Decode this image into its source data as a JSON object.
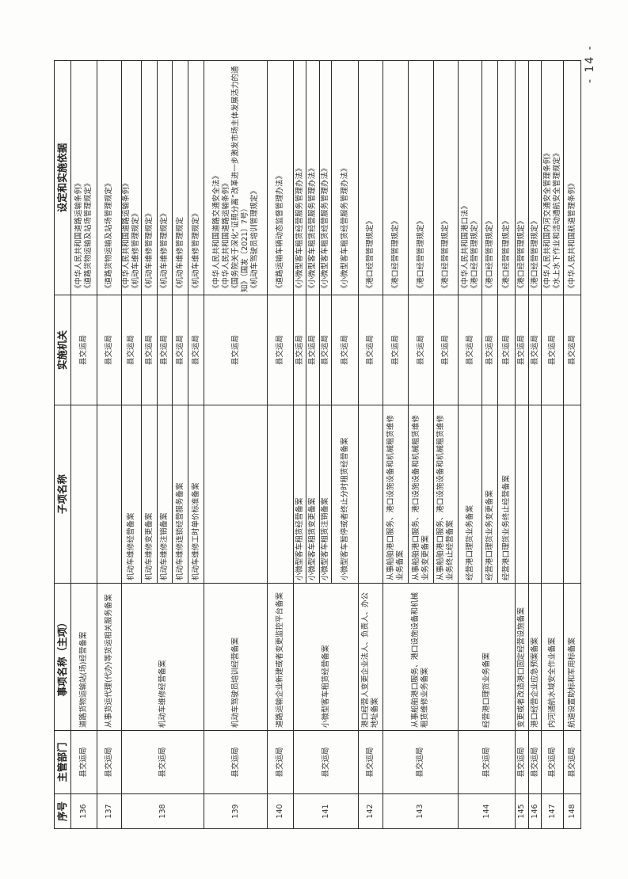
{
  "headers": [
    "序号",
    "主管部门",
    "事项名称（主项）",
    "子项名称",
    "实施机关",
    "设定和实施依据"
  ],
  "page_number": "- 14 -",
  "rows": [
    {
      "no": "136",
      "dept": "县交运局",
      "item": "道路货物运输站(场)经营备案",
      "subs": [
        {
          "name": "",
          "agency": "县交运局",
          "basis": [
            "《中华人民共和国道路运输条例》",
            "《道路货物运输及站场管理规定》"
          ]
        }
      ]
    },
    {
      "no": "137",
      "dept": "县交运局",
      "item": "从事货运代理(代办)等货运相关服务备案",
      "subs": [
        {
          "name": "",
          "agency": "县交运局",
          "basis": [
            "《道路货物运输及站场管理规定》"
          ]
        }
      ]
    },
    {
      "no": "138",
      "dept": "县交运局",
      "item": "机动车维修经营备案",
      "subs": [
        {
          "name": "机动车维修经营备案",
          "agency": "县交运局",
          "basis": [
            "《中华人民共和国道路运输条例》",
            "《机动车维修管理规定》"
          ]
        },
        {
          "name": "机动车维修变更备案",
          "agency": "县交运局",
          "basis": [
            "《机动车维修管理规定》"
          ]
        },
        {
          "name": "机动车维修注销备案",
          "agency": "县交运局",
          "basis": [
            "《机动车维修管理规定》"
          ]
        },
        {
          "name": "机动车维修连锁经营服务备案",
          "agency": "县交运局",
          "basis": [
            "《机动车维修管理规定"
          ]
        },
        {
          "name": "机动车维修工时单价标准备案",
          "agency": "县交运局",
          "basis": [
            "《机动车维修管理规定》"
          ]
        }
      ]
    },
    {
      "no": "139",
      "dept": "县交运局",
      "item": "机动车驾驶员培训经营备案",
      "subs": [
        {
          "name": "",
          "agency": "县交运局",
          "basis": [
            "《中华人民共和国道路交通安全法》",
            "《中华人民共和国道路运输条例》",
            "《国务院关于深化“证照分离”改革进一步激发市场主体发展活力的通知》（国发〔2021〕7号）",
            "《机动车驾驶员培训管理规定》"
          ]
        }
      ]
    },
    {
      "no": "140",
      "dept": "县交运局",
      "item": "道路运输企业新建或者变更监控平台备案",
      "subs": [
        {
          "name": "",
          "agency": "县交运局",
          "basis": [
            "《道路运输车辆动态监督管理办法》"
          ]
        }
      ]
    },
    {
      "no": "141",
      "dept": "县交运局",
      "item": "小微型客车租赁经营备案",
      "subs": [
        {
          "name": "小微型客车租赁经营备案",
          "agency": "县交运局",
          "basis": [
            "《小微型客车租赁经营服务管理办法》"
          ]
        },
        {
          "name": "小微型客车租赁变更备案",
          "agency": "县交运局",
          "basis": [
            "《小微型客车租赁经营服务管理办法》"
          ]
        },
        {
          "name": "小微型客车租赁注销备案",
          "agency": "县交运局",
          "basis": [
            "《小微型客车租赁经营服务管理办法》"
          ]
        },
        {
          "name": "小微型客车暂停或者终止分时租赁经营备案",
          "agency": "县交运局",
          "basis": [
            "《小微型客车租赁经营服务管理办法》"
          ]
        }
      ]
    },
    {
      "no": "142",
      "dept": "县交运局",
      "item": "港口经营人变更企业法人、负责人、办公地址备案",
      "subs": [
        {
          "name": "",
          "agency": "县交运局",
          "basis": [
            "《港口经营管理规定》"
          ]
        }
      ]
    },
    {
      "no": "143",
      "dept": "县交运局",
      "item": "从事船舶港口服务、港口设施设备和机械租赁维修业务备案",
      "subs": [
        {
          "name": "从事船舶港口服务、港口设施设备和机械租赁维修业务备案",
          "agency": "县交运局",
          "basis": [
            "《港口经营管理规定》"
          ]
        },
        {
          "name": "从事船舶港口服务、港口设施设备和机械租赁维修业务变更备案",
          "agency": "县交运局",
          "basis": [
            "《港口经营管理规定》"
          ]
        },
        {
          "name": "从事船舶港口服务、港口设施设备和机械租赁维修业务终止经营备案",
          "agency": "县交运局",
          "basis": [
            "《港口经营管理规定》"
          ]
        }
      ]
    },
    {
      "no": "144",
      "dept": "县交运局",
      "item": "经营港口理货业务备案",
      "subs": [
        {
          "name": "经营港口理货业务备案",
          "agency": "县交运局",
          "basis": [
            "《中华人民共和国港口法》",
            "《港口经营管理规定》"
          ]
        },
        {
          "name": "经营港口理货业务变更备案",
          "agency": "县交运局",
          "basis": [
            "《港口经营管理规定》"
          ]
        },
        {
          "name": "经营港口理货业务终止经营备案",
          "agency": "县交运局",
          "basis": [
            "《港口经营管理规定》"
          ]
        }
      ]
    },
    {
      "no": "145",
      "dept": "县交运局",
      "item": "变更或者改造港口固定经营设施备案",
      "subs": [
        {
          "name": "",
          "agency": "县交运局",
          "basis": [
            "《港口经营管理规定》"
          ]
        }
      ]
    },
    {
      "no": "146",
      "dept": "县交运局",
      "item": "港口经营企业应急预案备案",
      "subs": [
        {
          "name": "",
          "agency": "县交运局",
          "basis": [
            "《港口经营管理规定》"
          ]
        }
      ]
    },
    {
      "no": "147",
      "dept": "县交运局",
      "item": "内河通航水域安全作业备案",
      "subs": [
        {
          "name": "",
          "agency": "县交运局",
          "basis": [
            "《中华人民共和国内河交通安全管理条例》",
            "《水上水下作业和活动通航安全管理规定》"
          ]
        }
      ]
    },
    {
      "no": "148",
      "dept": "县交运局",
      "item": "航道设置助标和军用标备案",
      "subs": [
        {
          "name": "",
          "agency": "县交运局",
          "basis": [
            "《中华人民共和国航道管理条例》"
          ]
        }
      ]
    }
  ]
}
